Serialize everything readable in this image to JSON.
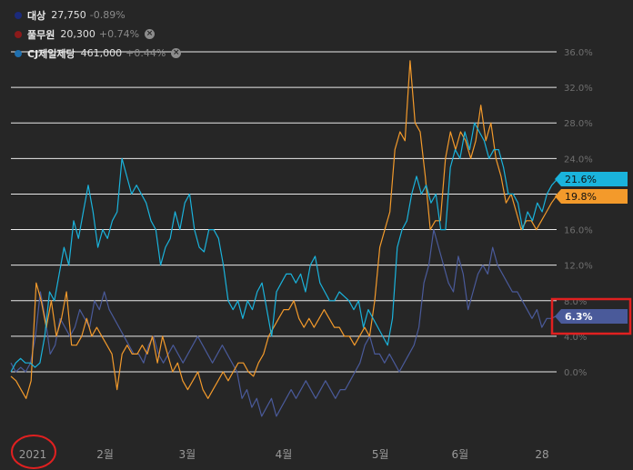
{
  "legend": [
    {
      "name": "대상",
      "price": "27,750",
      "change": "-0.89%",
      "color": "#1b2a7a",
      "closable": false
    },
    {
      "name": "풀무원",
      "price": "20,300",
      "change": "+0.74%",
      "color": "#8b1a1a",
      "closable": true
    },
    {
      "name": "CJ제일제당",
      "price": "461,000",
      "change": "+0.44%",
      "color": "#1f6fae",
      "closable": true
    }
  ],
  "close_icon": "×",
  "colors": {
    "cyan": "#1ab3dc",
    "orange": "#f39a2b",
    "slate": "#4a5a9a"
  },
  "annotations": [
    {
      "shape": "rectangle",
      "target": "6.3% tag",
      "color": "#e02020"
    },
    {
      "shape": "circle",
      "target": "2021 label",
      "color": "#e02020"
    }
  ],
  "chart_data": {
    "type": "line",
    "ylim": [
      -2,
      36
    ],
    "y_ticks": [
      "36.0%",
      "32.0%",
      "28.0%",
      "24.0%",
      "20.0%",
      "16.0%",
      "12.0%",
      "8.0%",
      "4.0%",
      "0.0%"
    ],
    "y_tick_values": [
      36,
      32,
      28,
      24,
      20,
      16,
      12,
      8,
      4,
      0
    ],
    "x_ticks": [
      {
        "label": "2021",
        "x": 0
      },
      {
        "label": "2월",
        "x": 19.5
      },
      {
        "label": "3월",
        "x": 36.5
      },
      {
        "label": "4월",
        "x": 56.5
      },
      {
        "label": "5월",
        "x": 76.5
      },
      {
        "label": "6월",
        "x": 93
      },
      {
        "label": "28",
        "x": 110
      }
    ],
    "x_range": [
      0,
      113
    ],
    "series": [
      {
        "color": "#1ab3dc",
        "end_label": "21.6%",
        "end_value": 21.6,
        "values": [
          0,
          1,
          1.5,
          1,
          1,
          0.5,
          1,
          4,
          9,
          8,
          11,
          14,
          12,
          17,
          15,
          18,
          21,
          18,
          14,
          16,
          15,
          17,
          18,
          24,
          22,
          20,
          21,
          20,
          19,
          17,
          16,
          12,
          14,
          15,
          18,
          16,
          19,
          20,
          16,
          14,
          13.5,
          16,
          16,
          15,
          12,
          8,
          7,
          8,
          6,
          8,
          7,
          9,
          10,
          7,
          4,
          9,
          10,
          11,
          11,
          10,
          11,
          9,
          12,
          13,
          10,
          9,
          8,
          8,
          9,
          8.5,
          8,
          7,
          8,
          5,
          7,
          6,
          5,
          4,
          3,
          6,
          14,
          16,
          17,
          20,
          22,
          20,
          21,
          19,
          20,
          16,
          16,
          23,
          25,
          24,
          27,
          25,
          28,
          27,
          26,
          24,
          25,
          25,
          23,
          20,
          20,
          19,
          16,
          18,
          17,
          19,
          18,
          20,
          21,
          21.6
        ]
      },
      {
        "color": "#f39a2b",
        "end_label": "19.8%",
        "end_value": 19.8,
        "values": [
          -0.5,
          -1,
          -2,
          -3,
          -1,
          10,
          8,
          5,
          8,
          4,
          6,
          9,
          3,
          3,
          4,
          6,
          4,
          5,
          4,
          3,
          2,
          -2,
          2,
          3,
          2,
          2,
          3,
          2,
          4,
          1,
          4,
          2,
          0,
          1,
          -1,
          -2,
          -1,
          0,
          -2,
          -3,
          -2,
          -1,
          0,
          -1,
          0,
          1,
          1,
          0,
          -0.5,
          1,
          2,
          4,
          5,
          6,
          7,
          7,
          8,
          6,
          5,
          6,
          5,
          6,
          7,
          6,
          5,
          5,
          4,
          4,
          3,
          4,
          5,
          4,
          8,
          14,
          16,
          18,
          25,
          27,
          26,
          35,
          28,
          27,
          22,
          16,
          17,
          17,
          24,
          27,
          25,
          27,
          26,
          24,
          26,
          30,
          26,
          28,
          24,
          22,
          19,
          20,
          18,
          16,
          17,
          17,
          16,
          17,
          18,
          19,
          19.8
        ]
      },
      {
        "color": "#4a5a9a",
        "end_label": "6.3%",
        "end_value": 6.3,
        "values": [
          1,
          0,
          0.5,
          0,
          1,
          4,
          9,
          6,
          2,
          3,
          6,
          5,
          4,
          5,
          7,
          6,
          5,
          8,
          7,
          9,
          7,
          6,
          5,
          4,
          3,
          2,
          2,
          1,
          3,
          4,
          2,
          1,
          2,
          3,
          2,
          1,
          2,
          3,
          4,
          3,
          2,
          1,
          2,
          3,
          2,
          1,
          0,
          -3,
          -2,
          -4,
          -3,
          -5,
          -4,
          -3,
          -5,
          -4,
          -3,
          -2,
          -3,
          -2,
          -1,
          -2,
          -3,
          -2,
          -1,
          -2,
          -3,
          -2,
          -2,
          -1,
          0,
          1,
          3,
          4,
          2,
          2,
          1,
          2,
          1,
          0,
          1,
          2,
          3,
          5,
          10,
          12,
          16,
          14,
          12,
          10,
          9,
          13,
          11,
          7,
          9,
          11,
          12,
          11,
          14,
          12,
          11,
          10,
          9,
          9,
          8,
          7,
          6,
          7,
          5,
          6,
          6,
          6.3
        ]
      }
    ]
  }
}
